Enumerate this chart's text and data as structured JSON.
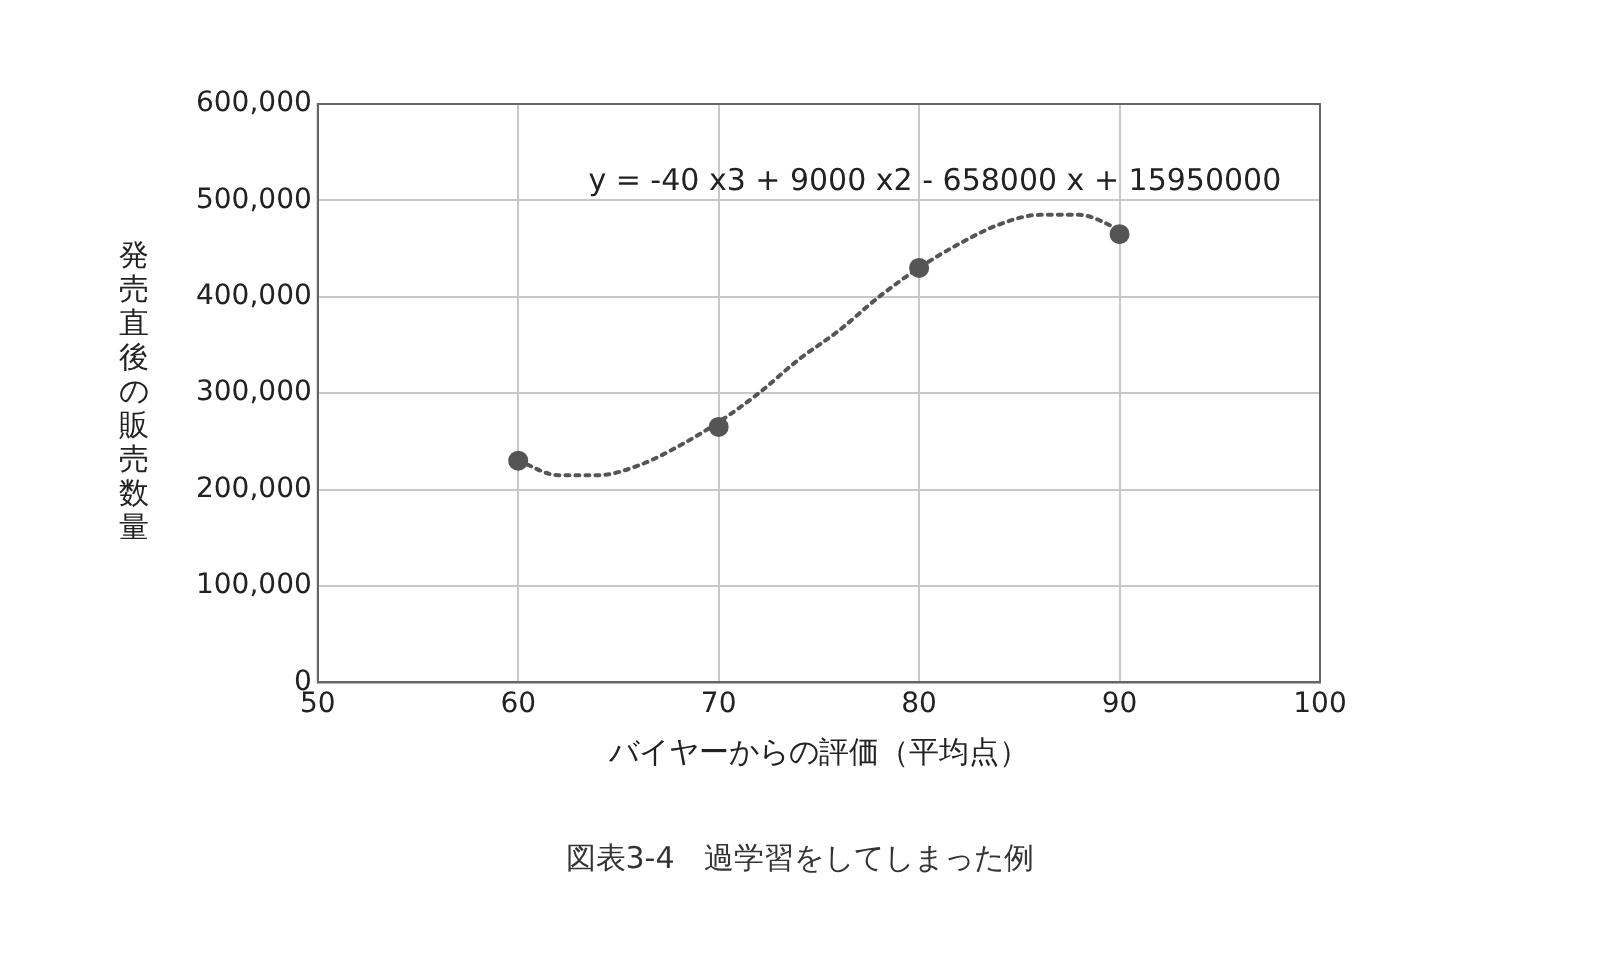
{
  "chart_data": {
    "type": "scatter",
    "xlabel": "バイヤーからの評価（平均点）",
    "ylabel": "発売直後の販売数量",
    "x": [
      60,
      70,
      80,
      90
    ],
    "series": [
      {
        "color": "#555555",
        "marker": "circle",
        "values": [
          230000,
          265000,
          430000,
          465000
        ]
      },
      {
        "type": "line",
        "color": "#555555",
        "line_style": "dotted",
        "marker": "none",
        "x": [
          60,
          62,
          64,
          66,
          68,
          70,
          72,
          74,
          76,
          78,
          80,
          82,
          84,
          86,
          88,
          90
        ],
        "values": [
          230000,
          215000,
          215000,
          225000,
          245000,
          270000,
          300000,
          335000,
          365000,
          400000,
          430000,
          455000,
          475000,
          485000,
          485000,
          470000
        ]
      }
    ],
    "xlim": [
      50,
      100
    ],
    "xticks": [
      50,
      60,
      70,
      80,
      90,
      100
    ],
    "ylim": [
      0,
      600000
    ],
    "yticks": [
      {
        "value": 0,
        "label": "0"
      },
      {
        "value": 100000,
        "label": "100,000"
      },
      {
        "value": 200000,
        "label": "200,000"
      },
      {
        "value": 300000,
        "label": "300,000"
      },
      {
        "value": 400000,
        "label": "400,000"
      },
      {
        "value": 500000,
        "label": "500,000"
      },
      {
        "value": 600000,
        "label": "600,000"
      }
    ],
    "grid": true,
    "legend": false,
    "annotations": [
      "y = -40 x3 + 9000 x2 - 658000 x + 15950000",
      "図表3-4　過学習をしてしまった例"
    ]
  }
}
